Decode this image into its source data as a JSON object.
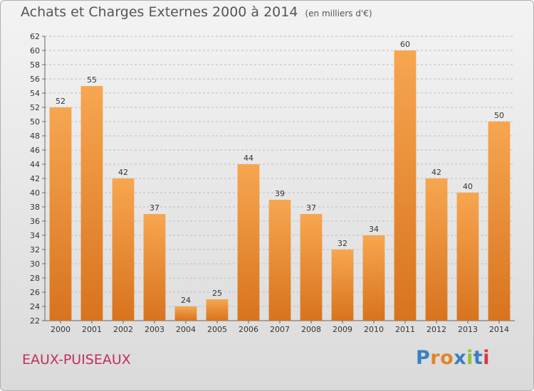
{
  "chart_data": {
    "type": "bar",
    "title": "Achats et Charges Externes 2000 à 2014",
    "unit": "(en milliers d'€)",
    "categories": [
      "2000",
      "2001",
      "2002",
      "2003",
      "2004",
      "2005",
      "2006",
      "2007",
      "2008",
      "2009",
      "2010",
      "2011",
      "2012",
      "2013",
      "2014"
    ],
    "values": [
      52,
      55,
      42,
      37,
      24,
      25,
      44,
      39,
      37,
      32,
      34,
      60,
      42,
      40,
      50
    ],
    "ylim": [
      22,
      62
    ],
    "yticks": [
      22,
      24,
      26,
      28,
      30,
      32,
      34,
      36,
      38,
      40,
      42,
      44,
      46,
      48,
      50,
      52,
      54,
      56,
      58,
      60,
      62
    ],
    "grid": "horizontal-dashed",
    "bar_color_top": "#f7a650",
    "bar_color_bottom": "#d8731e"
  },
  "commune": "EAUX-PUISEAUX",
  "logo": {
    "text": "Proxiti",
    "letter_colors": [
      "#3a7fc4",
      "#e0852a",
      "#e0852a",
      "#3a7fc4",
      "#8cc43c",
      "#3a7fc4",
      "#d33a3a"
    ]
  }
}
